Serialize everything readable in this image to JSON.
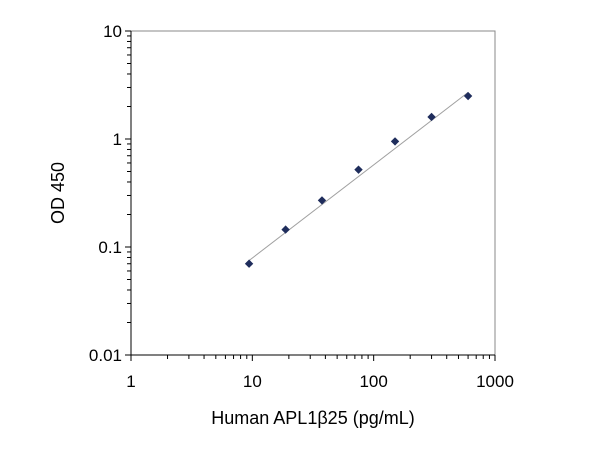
{
  "chart_data": {
    "type": "scatter",
    "title": "",
    "xlabel": "Human APL1β25 (pg/mL)",
    "ylabel": "OD 450",
    "x_scale": "log",
    "y_scale": "log",
    "xlim": [
      1,
      1000
    ],
    "ylim": [
      0.01,
      10
    ],
    "x_ticks": [
      "1",
      "10",
      "100",
      "1000"
    ],
    "y_ticks": [
      "0.01",
      "0.1",
      "1",
      "10"
    ],
    "grid": false,
    "legend": "none",
    "series": [
      {
        "x": [
          9.4,
          18.8,
          37.5,
          75,
          150,
          300,
          600
        ],
        "y": [
          0.07,
          0.145,
          0.27,
          0.52,
          0.95,
          1.6,
          2.5
        ]
      }
    ],
    "trendline": {
      "x": [
        9.4,
        600
      ],
      "y": [
        0.075,
        2.7
      ]
    },
    "colors": {
      "marker": "#1f2d5c",
      "trendline": "#a0a0a0",
      "frame": "#888888",
      "axis": "#000000"
    }
  }
}
